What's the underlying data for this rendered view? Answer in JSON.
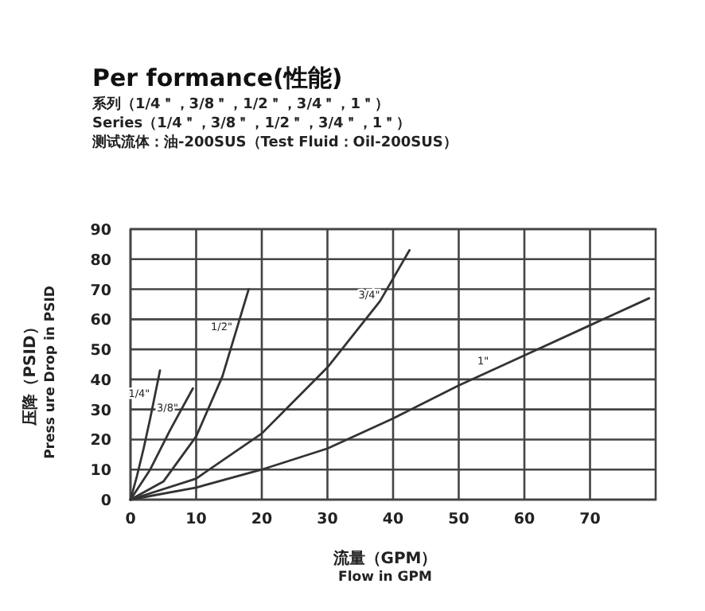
{
  "chart_data": {
    "type": "line",
    "title": "Per formance(性能)",
    "annotations": [
      "系列（1/4＂，3/8＂，1/2＂，3/4＂，1＂）",
      "Series（1/4＂，3/8＂，1/2＂，3/4＂，1＂）",
      "测试流体：油-200SUS（Test Fluid：Oil-200SUS）"
    ],
    "xlabel": "流量（GPM）\nFlow in GPM",
    "ylabel": "压降（PSID）\nPress ure Drop in PSID",
    "xlim": [
      0,
      80
    ],
    "ylim": [
      0,
      90
    ],
    "xticks": [
      0,
      10,
      20,
      30,
      40,
      50,
      60,
      70
    ],
    "yticks": [
      0,
      10,
      20,
      30,
      40,
      50,
      60,
      70,
      80,
      90
    ],
    "grid": true,
    "marker": "none",
    "line_style": "solid",
    "series": [
      {
        "name": "1/4\"",
        "color": "#333333",
        "x": [
          0,
          1,
          2,
          3,
          4.5
        ],
        "values": [
          0,
          8,
          17,
          27,
          43
        ]
      },
      {
        "name": "3/8\"",
        "color": "#333333",
        "x": [
          0,
          3,
          6,
          9.5
        ],
        "values": [
          0,
          10,
          23,
          37
        ]
      },
      {
        "name": "1/2\"",
        "color": "#333333",
        "x": [
          0,
          5,
          10,
          14,
          18
        ],
        "values": [
          0,
          6,
          21,
          41,
          70
        ]
      },
      {
        "name": "3/4\"",
        "color": "#333333",
        "x": [
          0,
          10,
          20,
          30,
          38,
          42.5
        ],
        "values": [
          0,
          7,
          22,
          44,
          66,
          83
        ]
      },
      {
        "name": "1\"",
        "color": "#333333",
        "x": [
          0,
          10,
          20,
          30,
          40,
          50,
          60,
          70,
          79
        ],
        "values": [
          0,
          4,
          10,
          17,
          27,
          38,
          48,
          58,
          67
        ]
      }
    ]
  }
}
